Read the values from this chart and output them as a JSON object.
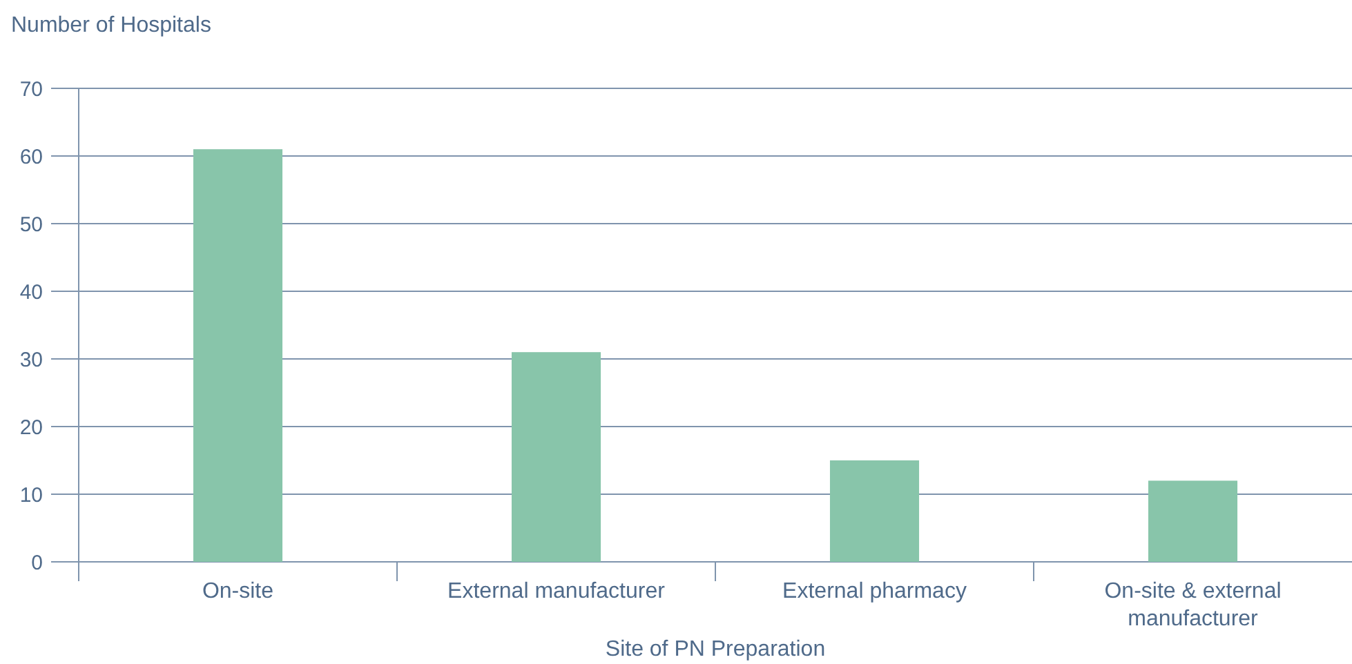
{
  "chart_data": {
    "type": "bar",
    "ylabel": "Number of Hospitals",
    "xlabel": "Site of PN Preparation",
    "categories": [
      "On-site",
      "External manufacturer",
      "External pharmacy",
      "On-site & external manufacturer"
    ],
    "values": [
      61,
      31,
      15,
      12
    ],
    "color": "#88c5aa",
    "ylim": [
      0,
      70
    ],
    "yticks": [
      0,
      10,
      20,
      30,
      40,
      50,
      60,
      70
    ],
    "grid": "y"
  }
}
